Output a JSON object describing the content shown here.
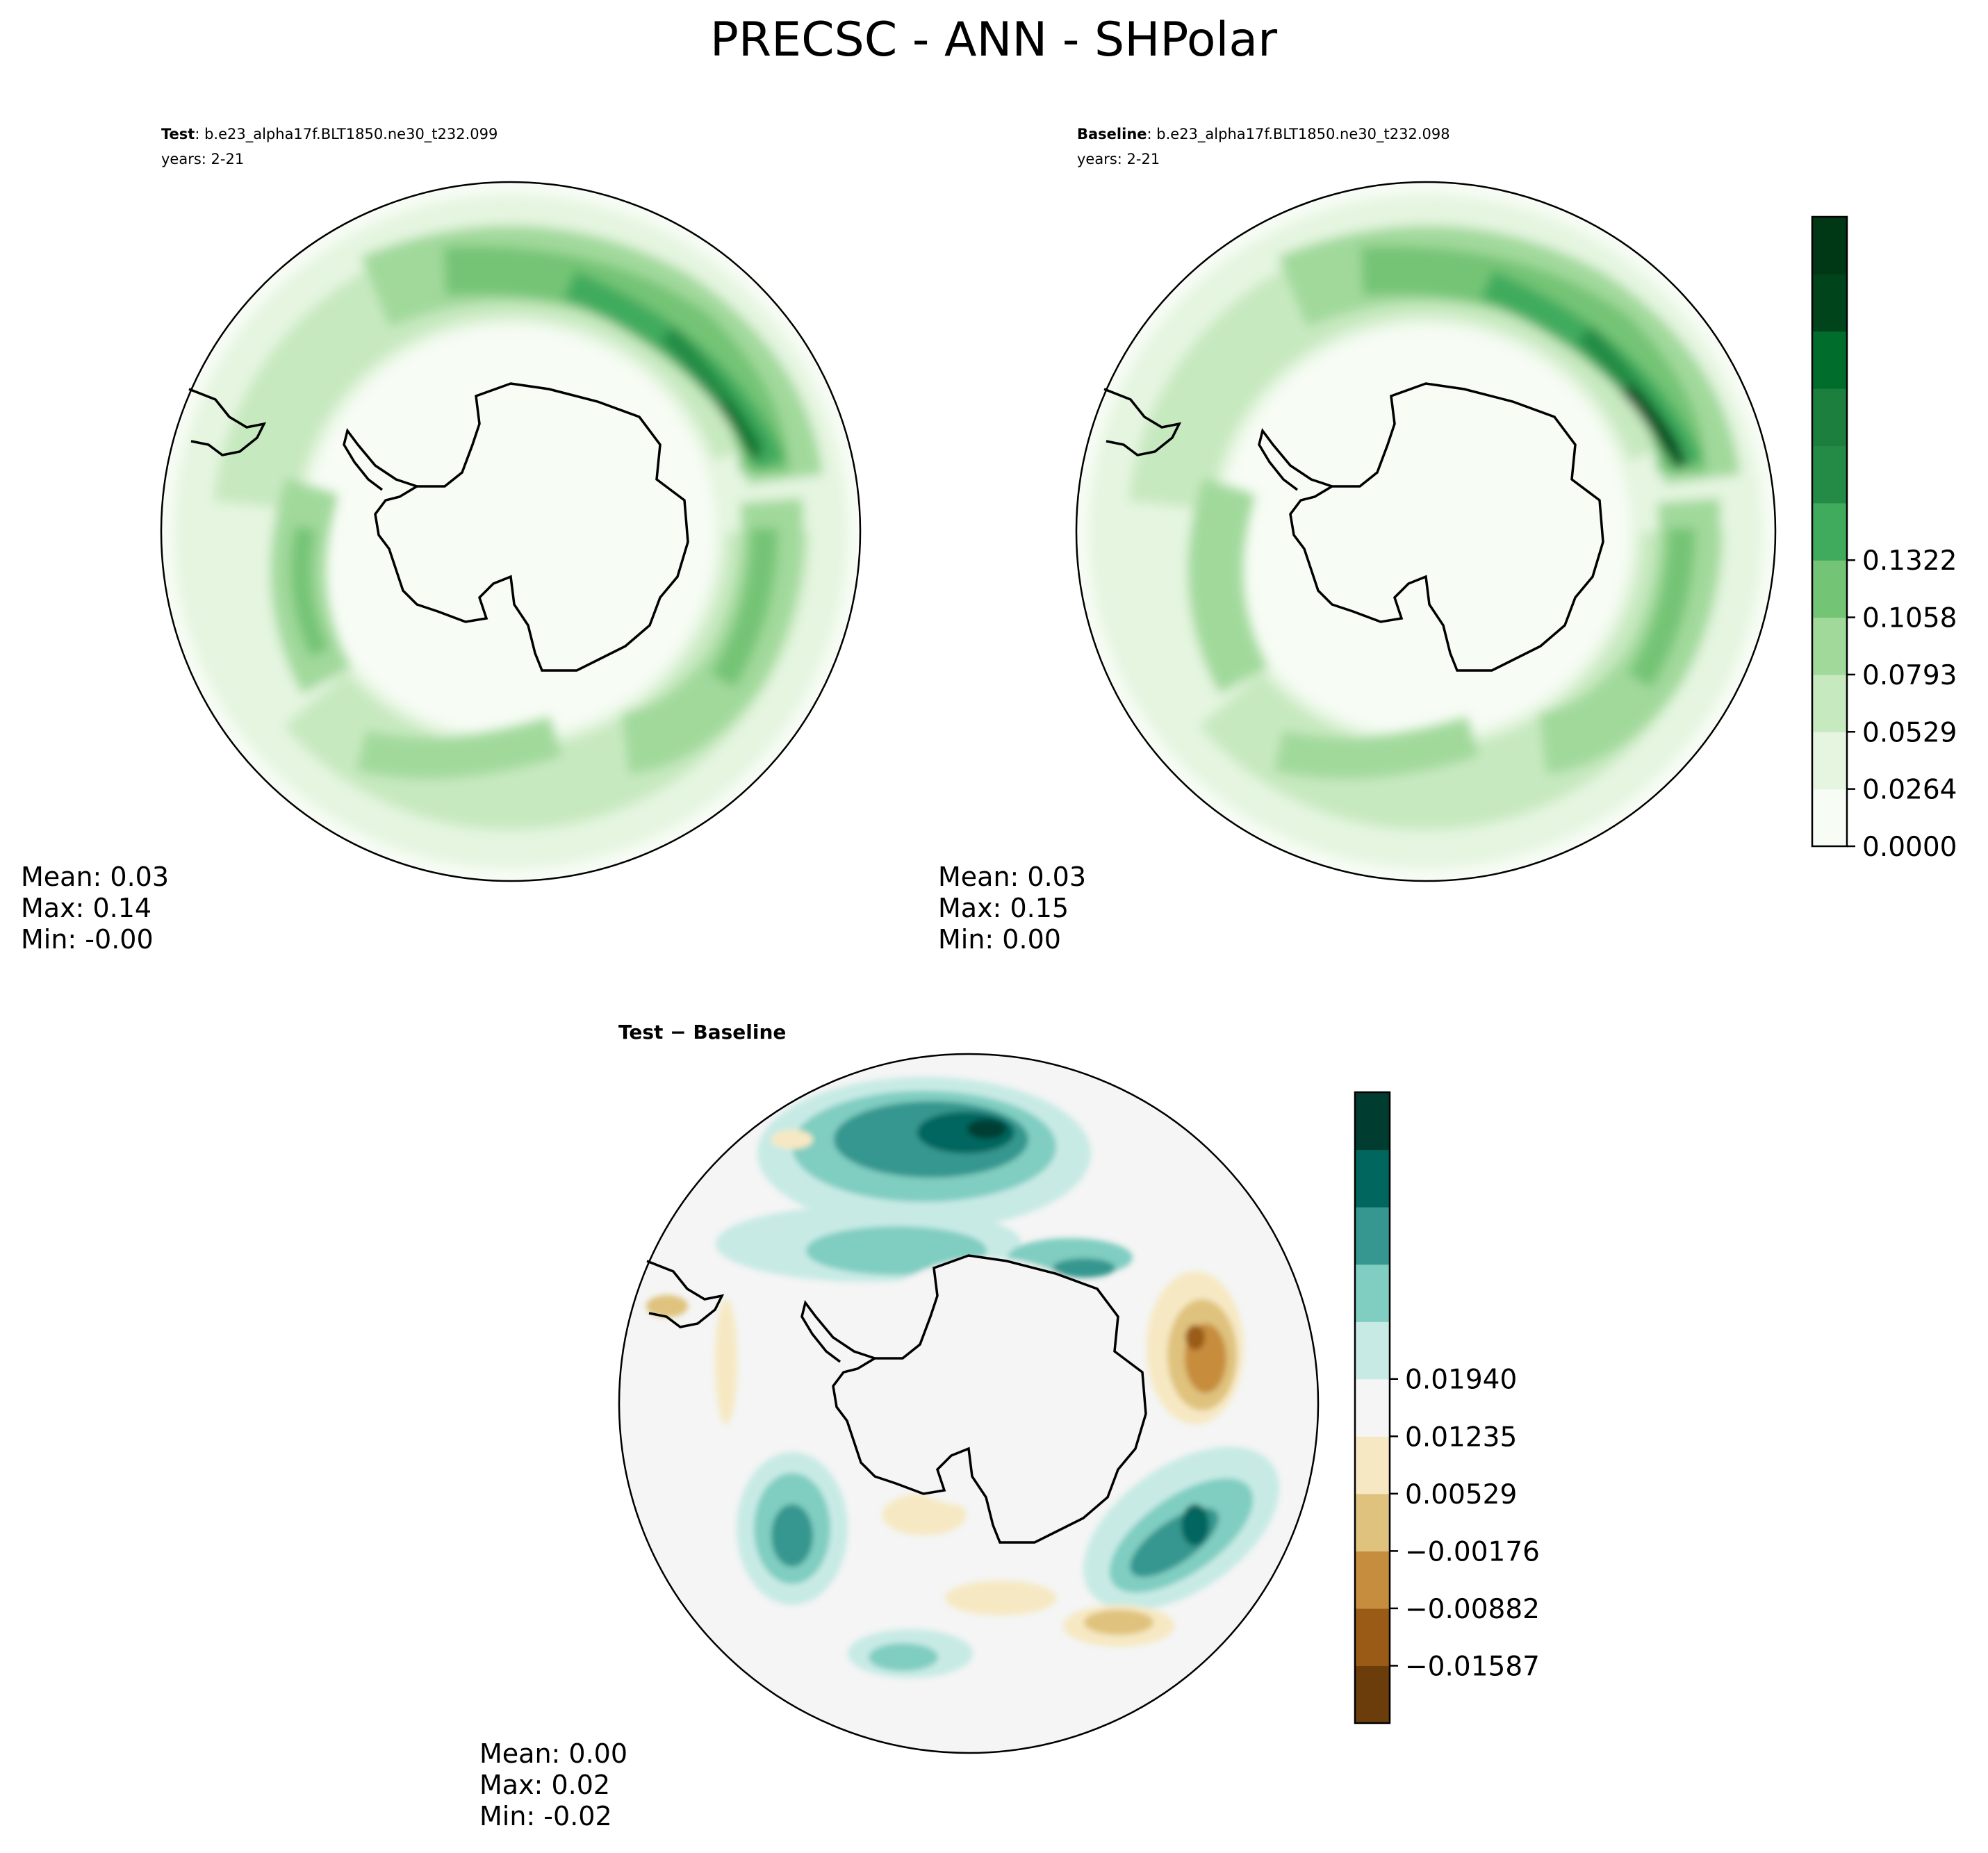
{
  "title": "PRECSC - ANN - SHPolar",
  "panels": [
    {
      "id": "test",
      "label_bold": "Test",
      "label_rest": ": b.e23_alpha17f.BLT1850.ne30_t232.099",
      "years": "years: 2-21",
      "stats": [
        "Mean:  0.03",
        "Max:  0.14",
        "Min: -0.00"
      ]
    },
    {
      "id": "baseline",
      "label_bold": "Baseline",
      "label_rest": ": b.e23_alpha17f.BLT1850.ne30_t232.098",
      "years": "years: 2-21",
      "stats": [
        "Mean:  0.03",
        "Max:  0.15",
        "Min:  0.00"
      ]
    },
    {
      "id": "diff",
      "label_bold": "Test",
      "label_sep": " − ",
      "label_bold2": "Baseline",
      "stats": [
        "Mean:  0.00",
        "Max:  0.02",
        "Min: -0.02"
      ]
    }
  ],
  "colorbars": {
    "main": {
      "ticks": [
        "0.0000",
        "0.0264",
        "0.0529",
        "0.0793",
        "0.1058",
        "0.1322"
      ],
      "colors": [
        "#f7fcf5",
        "#e5f5e0",
        "#c7e9c0",
        "#a1d99b",
        "#74c476",
        "#41ab5d",
        "#238b45",
        "#1c7f3d",
        "#006d2c",
        "#00441b",
        "#003816"
      ]
    },
    "diff": {
      "ticks": [
        "−0.01587",
        "−0.00882",
        "−0.00176",
        "0.00529",
        "0.01235",
        "0.01940"
      ],
      "colors": [
        "#6b3d0a",
        "#9a5b16",
        "#c78d3e",
        "#dfc27d",
        "#f6e8c3",
        "#f5f5f5",
        "#c7eae5",
        "#80cdc1",
        "#35978f",
        "#01665e",
        "#003c30"
      ]
    }
  }
}
